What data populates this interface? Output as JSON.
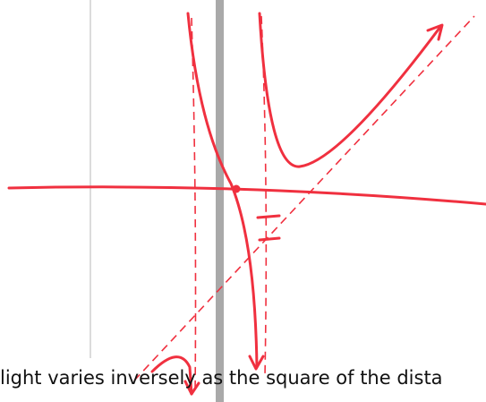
{
  "caption": {
    "text": "light varies inversely as the square of the dista"
  }
}
